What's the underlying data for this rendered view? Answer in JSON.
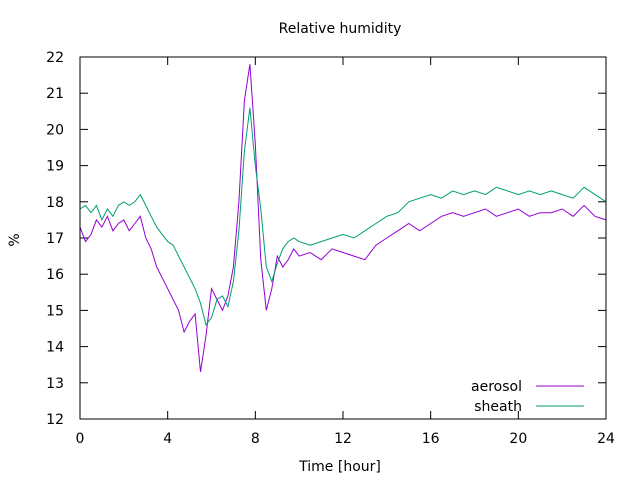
{
  "chart_data": {
    "type": "line",
    "title": "Relative humidity",
    "xlabel": "Time [hour]",
    "ylabel": "%",
    "xlim": [
      0,
      24
    ],
    "ylim": [
      12,
      22
    ],
    "xticks": [
      0,
      4,
      8,
      12,
      16,
      20,
      24
    ],
    "yticks": [
      12,
      13,
      14,
      15,
      16,
      17,
      18,
      19,
      20,
      21,
      22
    ],
    "grid": false,
    "legend_position": "bottom-right",
    "series": [
      {
        "name": "aerosol",
        "color": "#9400d3",
        "x": [
          0,
          0.25,
          0.5,
          0.75,
          1,
          1.25,
          1.5,
          1.75,
          2,
          2.25,
          2.5,
          2.75,
          3,
          3.25,
          3.5,
          3.75,
          4,
          4.25,
          4.5,
          4.75,
          5,
          5.25,
          5.5,
          5.75,
          6,
          6.25,
          6.5,
          6.75,
          7,
          7.25,
          7.5,
          7.75,
          8,
          8.25,
          8.5,
          8.75,
          9,
          9.25,
          9.5,
          9.75,
          10,
          10.5,
          11,
          11.5,
          12,
          12.5,
          13,
          13.5,
          14,
          14.5,
          15,
          15.5,
          16,
          16.5,
          17,
          17.5,
          18,
          18.5,
          19,
          19.5,
          20,
          20.5,
          21,
          21.5,
          22,
          22.5,
          23,
          23.5,
          24
        ],
        "values": [
          17.3,
          16.9,
          17.1,
          17.5,
          17.3,
          17.6,
          17.2,
          17.4,
          17.5,
          17.2,
          17.4,
          17.6,
          17.0,
          16.7,
          16.2,
          15.9,
          15.6,
          15.3,
          15.0,
          14.4,
          14.7,
          14.9,
          13.3,
          14.3,
          15.6,
          15.3,
          15.0,
          15.4,
          16.2,
          18.0,
          20.8,
          21.8,
          19.6,
          16.4,
          15.0,
          15.6,
          16.5,
          16.2,
          16.4,
          16.7,
          16.5,
          16.6,
          16.4,
          16.7,
          16.6,
          16.5,
          16.4,
          16.8,
          17.0,
          17.2,
          17.4,
          17.2,
          17.4,
          17.6,
          17.7,
          17.6,
          17.7,
          17.8,
          17.6,
          17.7,
          17.8,
          17.6,
          17.7,
          17.7,
          17.8,
          17.6,
          17.9,
          17.6,
          17.5
        ]
      },
      {
        "name": "sheath",
        "color": "#009e73",
        "x": [
          0,
          0.25,
          0.5,
          0.75,
          1,
          1.25,
          1.5,
          1.75,
          2,
          2.25,
          2.5,
          2.75,
          3,
          3.25,
          3.5,
          3.75,
          4,
          4.25,
          4.5,
          4.75,
          5,
          5.25,
          5.5,
          5.75,
          6,
          6.25,
          6.5,
          6.75,
          7,
          7.25,
          7.5,
          7.75,
          8,
          8.25,
          8.5,
          8.75,
          9,
          9.25,
          9.5,
          9.75,
          10,
          10.5,
          11,
          11.5,
          12,
          12.5,
          13,
          13.5,
          14,
          14.5,
          15,
          15.5,
          16,
          16.5,
          17,
          17.5,
          18,
          18.5,
          19,
          19.5,
          20,
          20.5,
          21,
          21.5,
          22,
          22.5,
          23,
          23.5,
          24
        ],
        "values": [
          17.8,
          17.9,
          17.7,
          17.9,
          17.5,
          17.8,
          17.6,
          17.9,
          18.0,
          17.9,
          18.0,
          18.2,
          17.9,
          17.6,
          17.3,
          17.1,
          16.9,
          16.8,
          16.5,
          16.2,
          15.9,
          15.6,
          15.2,
          14.6,
          14.8,
          15.3,
          15.4,
          15.1,
          15.8,
          17.2,
          19.4,
          20.6,
          19.0,
          17.8,
          16.2,
          15.8,
          16.3,
          16.7,
          16.9,
          17.0,
          16.9,
          16.8,
          16.9,
          17.0,
          17.1,
          17.0,
          17.2,
          17.4,
          17.6,
          17.7,
          18.0,
          18.1,
          18.2,
          18.1,
          18.3,
          18.2,
          18.3,
          18.2,
          18.4,
          18.3,
          18.2,
          18.3,
          18.2,
          18.3,
          18.2,
          18.1,
          18.4,
          18.2,
          18.0
        ]
      }
    ]
  }
}
